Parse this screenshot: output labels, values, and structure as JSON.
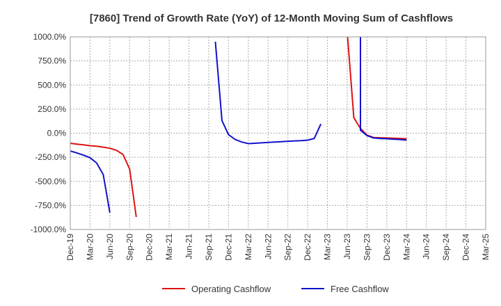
{
  "chart_data": {
    "type": "line",
    "title": "[7860]  Trend of Growth Rate (YoY) of 12-Month Moving Sum of Cashflows",
    "xlabel": "",
    "ylabel": "",
    "ylim": [
      -1000,
      1000
    ],
    "y_ticks": [
      "1000.0%",
      "750.0%",
      "500.0%",
      "250.0%",
      "0.0%",
      "-250.0%",
      "-500.0%",
      "-750.0%",
      "-1000.0%"
    ],
    "y_tick_values": [
      1000,
      750,
      500,
      250,
      0,
      -250,
      -500,
      -750,
      -1000
    ],
    "x_ticks": [
      "Dec-19",
      "Mar-20",
      "Jun-20",
      "Sep-20",
      "Dec-20",
      "Mar-21",
      "Jun-21",
      "Sep-21",
      "Dec-21",
      "Mar-22",
      "Jun-22",
      "Sep-22",
      "Dec-22",
      "Mar-23",
      "Jun-23",
      "Sep-23",
      "Dec-23",
      "Mar-24",
      "Jun-24",
      "Sep-24",
      "Dec-24",
      "Mar-25"
    ],
    "grid": true,
    "legend_position": "bottom",
    "series": [
      {
        "name": "Operating Cashflow",
        "color": "#dd1111",
        "segments": [
          [
            {
              "x": "Dec-19",
              "y": -105
            },
            {
              "x": "Jan-20",
              "y": -113
            },
            {
              "x": "Feb-20",
              "y": -121
            },
            {
              "x": "Mar-20",
              "y": -130
            },
            {
              "x": "Apr-20",
              "y": -136
            },
            {
              "x": "May-20",
              "y": -145
            },
            {
              "x": "Jun-20",
              "y": -157
            },
            {
              "x": "Jul-20",
              "y": -178
            },
            {
              "x": "Aug-20",
              "y": -222
            },
            {
              "x": "Sep-20",
              "y": -372
            },
            {
              "x": "Oct-20",
              "y": -870
            }
          ],
          [
            {
              "x": "Jun-23",
              "y": 1050
            },
            {
              "x": "Jul-23",
              "y": 160
            },
            {
              "x": "Aug-23",
              "y": 50
            },
            {
              "x": "Sep-23",
              "y": -20
            },
            {
              "x": "Oct-23",
              "y": -45
            },
            {
              "x": "Nov-23",
              "y": -48
            },
            {
              "x": "Dec-23",
              "y": -50
            },
            {
              "x": "Jan-24",
              "y": -52
            },
            {
              "x": "Feb-24",
              "y": -55
            },
            {
              "x": "Mar-24",
              "y": -58
            }
          ]
        ]
      },
      {
        "name": "Free Cashflow",
        "color": "#1111cc",
        "segments": [
          [
            {
              "x": "Dec-19",
              "y": -185
            },
            {
              "x": "Jan-20",
              "y": -205
            },
            {
              "x": "Feb-20",
              "y": -228
            },
            {
              "x": "Mar-20",
              "y": -255
            },
            {
              "x": "Apr-20",
              "y": -310
            },
            {
              "x": "May-20",
              "y": -430
            },
            {
              "x": "Jun-20",
              "y": -825
            }
          ],
          [
            {
              "x": "Oct-21",
              "y": 950
            },
            {
              "x": "Nov-21",
              "y": 130
            },
            {
              "x": "Dec-21",
              "y": -15
            },
            {
              "x": "Jan-22",
              "y": -65
            },
            {
              "x": "Feb-22",
              "y": -92
            },
            {
              "x": "Mar-22",
              "y": -108
            },
            {
              "x": "Apr-22",
              "y": -105
            },
            {
              "x": "May-22",
              "y": -100
            },
            {
              "x": "Jun-22",
              "y": -96
            },
            {
              "x": "Jul-22",
              "y": -92
            },
            {
              "x": "Aug-22",
              "y": -88
            },
            {
              "x": "Sep-22",
              "y": -84
            },
            {
              "x": "Oct-22",
              "y": -80
            },
            {
              "x": "Nov-22",
              "y": -78
            },
            {
              "x": "Dec-22",
              "y": -72
            },
            {
              "x": "Jan-23",
              "y": -55
            },
            {
              "x": "Feb-23",
              "y": 95
            }
          ],
          [
            {
              "x": "Aug-23",
              "y": 1050
            },
            {
              "x": "Aug-23",
              "y": 30
            },
            {
              "x": "Sep-23",
              "y": -25
            },
            {
              "x": "Oct-23",
              "y": -50
            },
            {
              "x": "Nov-23",
              "y": -55
            },
            {
              "x": "Dec-23",
              "y": -58
            },
            {
              "x": "Jan-24",
              "y": -62
            },
            {
              "x": "Feb-24",
              "y": -66
            },
            {
              "x": "Mar-24",
              "y": -72
            }
          ]
        ]
      }
    ]
  }
}
